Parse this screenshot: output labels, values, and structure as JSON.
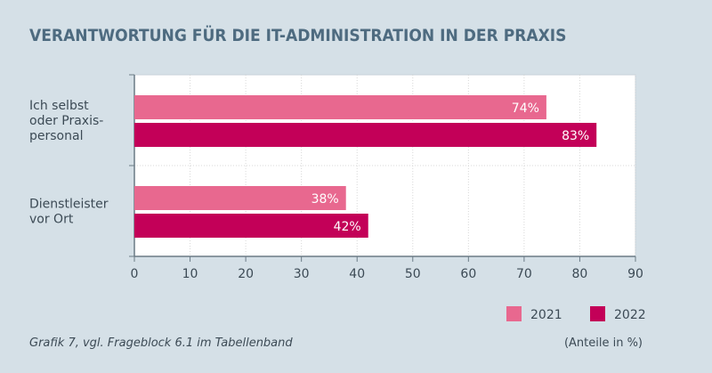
{
  "chart_data": {
    "type": "bar",
    "orientation": "horizontal",
    "title": "VERANTWORTUNG FÜR DIE IT-ADMINISTRATION IN DER PRAXIS",
    "categories": [
      [
        "Ich selbst",
        "oder Praxis-",
        "personal"
      ],
      [
        "Dienstleister",
        "vor Ort"
      ]
    ],
    "series": [
      {
        "name": "2021",
        "color": "#e8688f",
        "values": [
          74,
          38
        ],
        "labels": [
          "74%",
          "38%"
        ]
      },
      {
        "name": "2022",
        "color": "#c30058",
        "values": [
          83,
          42
        ],
        "labels": [
          "83%",
          "42%"
        ]
      }
    ],
    "xlim": [
      0,
      90
    ],
    "xticks": [
      0,
      10,
      20,
      30,
      40,
      50,
      60,
      70,
      80,
      90
    ],
    "grid": true,
    "legend": "bottom-right",
    "unit_note": "(Anteile in %)",
    "source": "Grafik 7, vgl. Frageblock 6.1 im Tabellenband"
  }
}
